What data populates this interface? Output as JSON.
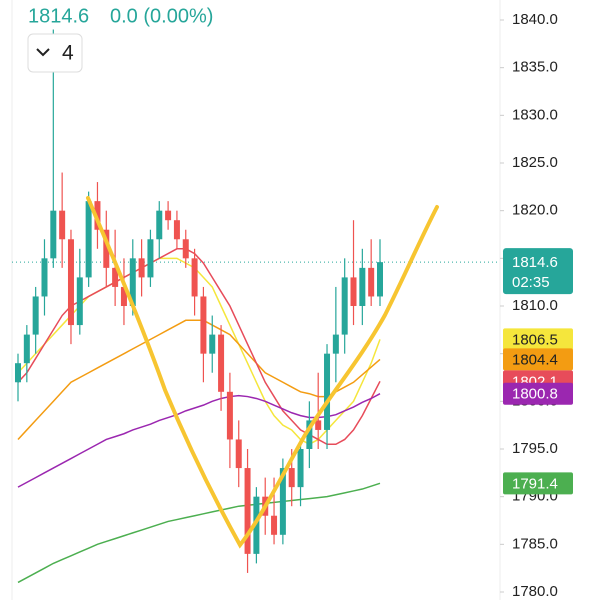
{
  "chart_data": {
    "type": "candlestick",
    "change": "0.0 (0.00%)",
    "interval": "4",
    "countdown": "02:35",
    "ylim": [
      1780,
      1840
    ],
    "yticks": [
      {
        "value": 1780,
        "label": "1780.0"
      },
      {
        "value": 1785,
        "label": "1785.0"
      },
      {
        "value": 1790,
        "label": "1790.0"
      },
      {
        "value": 1795,
        "label": "1795.0"
      },
      {
        "value": 1800,
        "label": "1800.0"
      },
      {
        "value": 1805,
        "label": "1805.0"
      },
      {
        "value": 1810,
        "label": "1810.0"
      },
      {
        "value": 1815,
        "label": "1815.0"
      },
      {
        "value": 1820,
        "label": "1820.0"
      },
      {
        "value": 1825,
        "label": "1825.0"
      },
      {
        "value": 1830,
        "label": "1830.0"
      },
      {
        "value": 1835,
        "label": "1835.0"
      },
      {
        "value": 1840,
        "label": "1840.0"
      }
    ],
    "up_color": "#26a69a",
    "down_color": "#ef5350",
    "open": [
      1802,
      1804,
      1807,
      1811,
      1815,
      1820,
      1817,
      1808,
      1813,
      1821,
      1818,
      1814,
      1812,
      1810,
      1815,
      1813,
      1817,
      1820,
      1819,
      1817,
      1815,
      1811,
      1805,
      1807,
      1801,
      1796,
      1793,
      1784,
      1790,
      1788,
      1786,
      1793,
      1791,
      1795,
      1798,
      1797,
      1805,
      1807,
      1813,
      1810,
      1814,
      1811
    ],
    "high": [
      1805,
      1808,
      1812,
      1817,
      1839,
      1824,
      1818,
      1816,
      1822,
      1823,
      1820,
      1818,
      1815,
      1817,
      1817,
      1818,
      1821,
      1821,
      1820,
      1818,
      1816,
      1812,
      1809,
      1808,
      1803,
      1798,
      1795,
      1791,
      1792,
      1792,
      1794,
      1795,
      1796,
      1800,
      1803,
      1806,
      1812,
      1815,
      1819,
      1816,
      1817,
      1817
    ],
    "low": [
      1800,
      1802,
      1805,
      1809,
      1814,
      1814,
      1806,
      1807,
      1812,
      1816,
      1812,
      1810,
      1808,
      1809,
      1811,
      1812,
      1815,
      1818,
      1816,
      1814,
      1809,
      1802,
      1803,
      1799,
      1793,
      1791,
      1782,
      1783,
      1786,
      1785,
      1785,
      1789,
      1789,
      1793,
      1795,
      1795,
      1802,
      1805,
      1808,
      1808,
      1810,
      1810
    ],
    "close": [
      1804,
      1807,
      1811,
      1815,
      1820,
      1817,
      1808,
      1813,
      1821,
      1818,
      1814,
      1812,
      1810,
      1815,
      1813,
      1817,
      1820,
      1819,
      1817,
      1815,
      1811,
      1805,
      1807,
      1801,
      1796,
      1793,
      1784,
      1790,
      1788,
      1786,
      1793,
      1791,
      1795,
      1798,
      1797,
      1805,
      1807,
      1813,
      1810,
      1814,
      1811,
      1814.6
    ],
    "series": [
      {
        "color": "#f5e63c",
        "values": [
          1803,
          1804,
          1805,
          1806,
          1807,
          1808,
          1809,
          1810,
          1811,
          1811.5,
          1812,
          1812.5,
          1813,
          1813.5,
          1814,
          1814.5,
          1815,
          1815,
          1815,
          1814.5,
          1814,
          1813,
          1812,
          1810,
          1808,
          1806,
          1804,
          1802,
          1800,
          1798.5,
          1797.5,
          1797,
          1796,
          1795.5,
          1796,
          1797,
          1798,
          1799,
          1800,
          1802,
          1804,
          1806.5
        ]
      },
      {
        "color": "#f39c12",
        "values": [
          1796,
          1797,
          1798,
          1799,
          1800,
          1801,
          1802,
          1802.5,
          1803,
          1803.5,
          1804,
          1804.5,
          1805,
          1805.5,
          1806,
          1806.5,
          1807,
          1807.5,
          1808,
          1808.5,
          1808.5,
          1808.5,
          1808,
          1807.5,
          1807,
          1806,
          1805,
          1804,
          1803,
          1802.5,
          1802,
          1801.5,
          1801,
          1800.8,
          1800.5,
          1800.5,
          1801,
          1801.5,
          1802,
          1802.8,
          1803.6,
          1804.4
        ]
      },
      {
        "color": "#e74c5a",
        "values": [
          1802,
          1803,
          1804.5,
          1806,
          1807.5,
          1809,
          1810,
          1810.5,
          1811,
          1811.5,
          1812,
          1812.5,
          1813,
          1813.5,
          1814,
          1814.5,
          1815,
          1815.5,
          1816,
          1816,
          1815.5,
          1814.5,
          1813,
          1811.5,
          1810,
          1808,
          1806,
          1804,
          1802,
          1800.5,
          1799,
          1798,
          1797,
          1796.5,
          1796,
          1795.5,
          1795.5,
          1796,
          1797,
          1798.5,
          1800.3,
          1802.1
        ]
      },
      {
        "color": "#9b27b0",
        "values": [
          1791,
          1791.5,
          1792,
          1792.5,
          1793,
          1793.5,
          1794,
          1794.5,
          1795,
          1795.5,
          1796,
          1796.3,
          1796.6,
          1797,
          1797.3,
          1797.6,
          1798,
          1798.3,
          1798.6,
          1799,
          1799.3,
          1799.6,
          1800,
          1800.3,
          1800.5,
          1800.6,
          1800.5,
          1800.3,
          1800,
          1799.6,
          1799.2,
          1798.8,
          1798.5,
          1798.3,
          1798.3,
          1798.4,
          1798.6,
          1799,
          1799.4,
          1799.9,
          1800.3,
          1800.8
        ]
      },
      {
        "color": "#4caf50",
        "values": [
          1781,
          1781.5,
          1782,
          1782.5,
          1783,
          1783.4,
          1783.8,
          1784.2,
          1784.6,
          1785,
          1785.3,
          1785.6,
          1785.9,
          1786.2,
          1786.5,
          1786.8,
          1787.1,
          1787.4,
          1787.6,
          1787.8,
          1788,
          1788.2,
          1788.4,
          1788.6,
          1788.8,
          1789,
          1789.1,
          1789.2,
          1789.3,
          1789.4,
          1789.5,
          1789.6,
          1789.7,
          1789.8,
          1789.9,
          1790,
          1790.2,
          1790.4,
          1790.6,
          1790.8,
          1791.1,
          1791.4
        ]
      }
    ]
  }
}
